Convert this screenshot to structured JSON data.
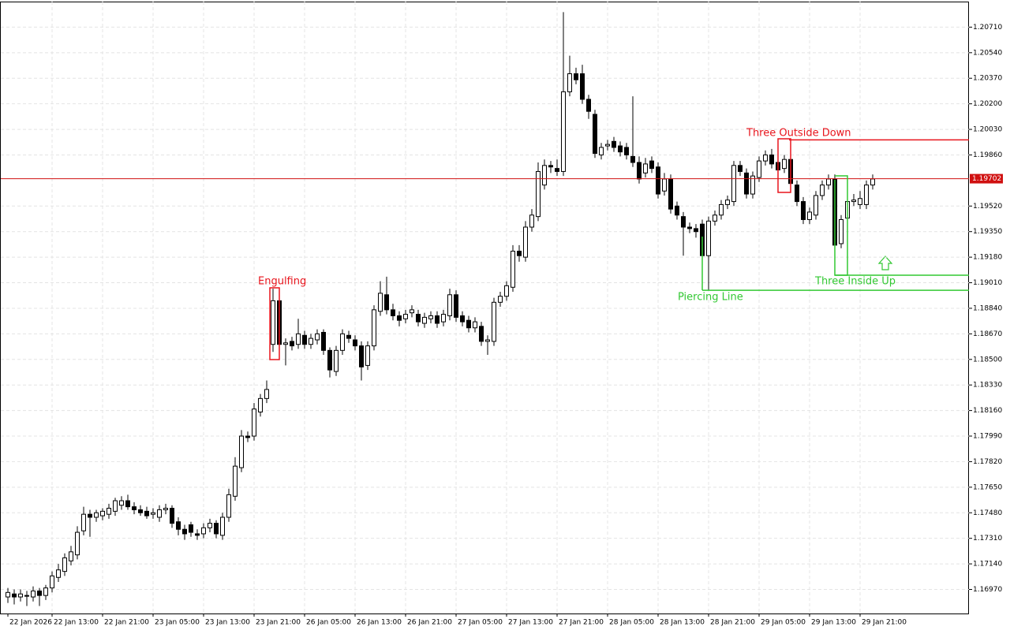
{
  "chart_data": {
    "type": "candlestick",
    "candles": [
      [
        1.1692,
        1.1698,
        1.1688,
        1.1695
      ],
      [
        1.1694,
        1.1697,
        1.1687,
        1.1692
      ],
      [
        1.1692,
        1.1697,
        1.1689,
        1.1694
      ],
      [
        1.1693,
        1.1696,
        1.1686,
        1.1693
      ],
      [
        1.1692,
        1.1699,
        1.1689,
        1.1696
      ],
      [
        1.1696,
        1.1698,
        1.1686,
        1.1693
      ],
      [
        1.1693,
        1.17,
        1.169,
        1.1698
      ],
      [
        1.1698,
        1.1709,
        1.1695,
        1.1706
      ],
      [
        1.1705,
        1.1714,
        1.1702,
        1.171
      ],
      [
        1.1709,
        1.1721,
        1.1706,
        1.1718
      ],
      [
        1.1716,
        1.1726,
        1.1713,
        1.1722
      ],
      [
        1.172,
        1.1739,
        1.1717,
        1.1735
      ],
      [
        1.1736,
        1.1752,
        1.1733,
        1.1747
      ],
      [
        1.1747,
        1.175,
        1.1732,
        1.1745
      ],
      [
        1.1745,
        1.175,
        1.1742,
        1.1748
      ],
      [
        1.1746,
        1.1751,
        1.1743,
        1.1749
      ],
      [
        1.1747,
        1.1754,
        1.1744,
        1.1751
      ],
      [
        1.1749,
        1.1758,
        1.1746,
        1.1756
      ],
      [
        1.1753,
        1.1759,
        1.175,
        1.1756
      ],
      [
        1.1756,
        1.176,
        1.175,
        1.1752
      ],
      [
        1.1752,
        1.1755,
        1.1747,
        1.175
      ],
      [
        1.175,
        1.1753,
        1.1746,
        1.1748
      ],
      [
        1.1749,
        1.1752,
        1.1744,
        1.1746
      ],
      [
        1.1747,
        1.1751,
        1.1744,
        1.1748
      ],
      [
        1.1745,
        1.1753,
        1.1742,
        1.175
      ],
      [
        1.175,
        1.1754,
        1.1747,
        1.1751
      ],
      [
        1.1751,
        1.1753,
        1.1738,
        1.1741
      ],
      [
        1.1742,
        1.1745,
        1.1733,
        1.1737
      ],
      [
        1.1737,
        1.174,
        1.173,
        1.1734
      ],
      [
        1.174,
        1.1742,
        1.1732,
        1.1735
      ],
      [
        1.1734,
        1.1737,
        1.173,
        1.1733
      ],
      [
        1.1734,
        1.1741,
        1.1731,
        1.1738
      ],
      [
        1.1738,
        1.1744,
        1.1735,
        1.1741
      ],
      [
        1.1741,
        1.1743,
        1.1731,
        1.1734
      ],
      [
        1.1733,
        1.1748,
        1.173,
        1.1745
      ],
      [
        1.1745,
        1.1764,
        1.1742,
        1.176
      ],
      [
        1.1759,
        1.1785,
        1.1756,
        1.1779
      ],
      [
        1.1778,
        1.1803,
        1.1775,
        1.1799
      ],
      [
        1.1799,
        1.1802,
        1.1795,
        1.1798
      ],
      [
        1.1799,
        1.1821,
        1.1796,
        1.1817
      ],
      [
        1.1815,
        1.1827,
        1.1812,
        1.1824
      ],
      [
        1.1824,
        1.1836,
        1.1821,
        1.183
      ],
      [
        1.186,
        1.1897,
        1.1855,
        1.1889
      ],
      [
        1.1889,
        1.1893,
        1.1851,
        1.186
      ],
      [
        1.186,
        1.1864,
        1.1846,
        1.1861
      ],
      [
        1.1862,
        1.1865,
        1.1856,
        1.1859
      ],
      [
        1.186,
        1.1877,
        1.1857,
        1.1867
      ],
      [
        1.1866,
        1.1869,
        1.1857,
        1.186
      ],
      [
        1.186,
        1.1867,
        1.1857,
        1.1864
      ],
      [
        1.1863,
        1.187,
        1.186,
        1.1867
      ],
      [
        1.1868,
        1.187,
        1.1853,
        1.1856
      ],
      [
        1.1856,
        1.1858,
        1.1838,
        1.1843
      ],
      [
        1.1842,
        1.1859,
        1.1839,
        1.1856
      ],
      [
        1.1856,
        1.187,
        1.1853,
        1.1867
      ],
      [
        1.1866,
        1.1869,
        1.1861,
        1.1864
      ],
      [
        1.1863,
        1.1866,
        1.1856,
        1.1859
      ],
      [
        1.1859,
        1.1862,
        1.1836,
        1.1845
      ],
      [
        1.1846,
        1.1862,
        1.1843,
        1.1859
      ],
      [
        1.1859,
        1.1886,
        1.1856,
        1.1883
      ],
      [
        1.1882,
        1.1902,
        1.1879,
        1.1894
      ],
      [
        1.1893,
        1.1905,
        1.188,
        1.1883
      ],
      [
        1.1883,
        1.1887,
        1.1876,
        1.1879
      ],
      [
        1.1879,
        1.1882,
        1.1872,
        1.1876
      ],
      [
        1.1877,
        1.1883,
        1.1874,
        1.188
      ],
      [
        1.1881,
        1.1886,
        1.1878,
        1.1883
      ],
      [
        1.188,
        1.1883,
        1.1872,
        1.1875
      ],
      [
        1.1874,
        1.1881,
        1.1871,
        1.1878
      ],
      [
        1.1877,
        1.1882,
        1.1874,
        1.1879
      ],
      [
        1.1879,
        1.1882,
        1.1871,
        1.1874
      ],
      [
        1.1875,
        1.1883,
        1.1872,
        1.188
      ],
      [
        1.1879,
        1.1897,
        1.1876,
        1.1893
      ],
      [
        1.1893,
        1.1896,
        1.1875,
        1.1878
      ],
      [
        1.1879,
        1.1882,
        1.1872,
        1.1875
      ],
      [
        1.1876,
        1.1879,
        1.1868,
        1.1871
      ],
      [
        1.1871,
        1.1878,
        1.1868,
        1.1875
      ],
      [
        1.1872,
        1.1875,
        1.1859,
        1.1862
      ],
      [
        1.1862,
        1.1866,
        1.1853,
        1.1863
      ],
      [
        1.1862,
        1.1891,
        1.1859,
        1.1888
      ],
      [
        1.1888,
        1.1895,
        1.1885,
        1.1892
      ],
      [
        1.1892,
        1.1902,
        1.1889,
        1.1899
      ],
      [
        1.1898,
        1.1926,
        1.1895,
        1.1922
      ],
      [
        1.1922,
        1.1926,
        1.1915,
        1.1919
      ],
      [
        1.1918,
        1.1942,
        1.1915,
        1.1938
      ],
      [
        1.1938,
        1.195,
        1.1935,
        1.1946
      ],
      [
        1.1945,
        1.1981,
        1.1942,
        1.1975
      ],
      [
        1.1966,
        1.1983,
        1.1963,
        1.1979
      ],
      [
        1.1979,
        1.1982,
        1.1974,
        1.1978
      ],
      [
        1.1977,
        1.1983,
        1.1972,
        1.1975
      ],
      [
        1.1975,
        1.2081,
        1.1972,
        1.2028
      ],
      [
        1.2028,
        1.2052,
        1.2025,
        1.204
      ],
      [
        1.204,
        1.2044,
        1.2033,
        1.2036
      ],
      [
        1.204,
        1.2046,
        1.202,
        1.2023
      ],
      [
        1.2023,
        1.2026,
        1.201,
        1.2015
      ],
      [
        1.2013,
        1.2016,
        1.1984,
        1.1987
      ],
      [
        1.1986,
        1.1994,
        1.1983,
        1.1991
      ],
      [
        1.1992,
        1.1996,
        1.1989,
        1.1993
      ],
      [
        1.1995,
        1.1998,
        1.1988,
        1.1991
      ],
      [
        1.1992,
        1.1995,
        1.1985,
        1.1988
      ],
      [
        1.1991,
        1.1994,
        1.1983,
        1.1986
      ],
      [
        1.1985,
        1.2025,
        1.1978,
        1.1981
      ],
      [
        1.1981,
        1.1985,
        1.1967,
        1.197
      ],
      [
        1.1974,
        1.1984,
        1.1971,
        1.198
      ],
      [
        1.1982,
        1.1985,
        1.1974,
        1.1977
      ],
      [
        1.1978,
        1.1981,
        1.1957,
        1.196
      ],
      [
        1.1962,
        1.1974,
        1.1959,
        1.197
      ],
      [
        1.197,
        1.1973,
        1.1947,
        1.195
      ],
      [
        1.1952,
        1.1955,
        1.1943,
        1.1946
      ],
      [
        1.1945,
        1.1948,
        1.1919,
        1.1938
      ],
      [
        1.1938,
        1.1941,
        1.1934,
        1.1937
      ],
      [
        1.1937,
        1.194,
        1.1931,
        1.1935
      ],
      [
        1.194,
        1.1943,
        1.1913,
        1.1919
      ],
      [
        1.1919,
        1.1945,
        1.1896,
        1.1942
      ],
      [
        1.1942,
        1.1949,
        1.1939,
        1.1946
      ],
      [
        1.1946,
        1.1956,
        1.1943,
        1.1953
      ],
      [
        1.1953,
        1.1959,
        1.195,
        1.1956
      ],
      [
        1.1955,
        1.1982,
        1.1952,
        1.1979
      ],
      [
        1.1979,
        1.1982,
        1.1972,
        1.1975
      ],
      [
        1.1974,
        1.1977,
        1.1957,
        1.196
      ],
      [
        1.196,
        1.1975,
        1.1957,
        1.1972
      ],
      [
        1.1971,
        1.1985,
        1.1968,
        1.1982
      ],
      [
        1.1982,
        1.1989,
        1.1979,
        1.1986
      ],
      [
        1.1986,
        1.199,
        1.1977,
        1.198
      ],
      [
        1.1981,
        1.1996,
        1.1963,
        1.1976
      ],
      [
        1.1977,
        1.1986,
        1.1974,
        1.1983
      ],
      [
        1.1983,
        1.1986,
        1.1964,
        1.1967
      ],
      [
        1.1966,
        1.1969,
        1.1952,
        1.1955
      ],
      [
        1.1955,
        1.1958,
        1.194,
        1.1943
      ],
      [
        1.1943,
        1.1951,
        1.194,
        1.1948
      ],
      [
        1.1946,
        1.1962,
        1.1943,
        1.1959
      ],
      [
        1.1959,
        1.1969,
        1.1956,
        1.1966
      ],
      [
        1.1966,
        1.1973,
        1.1963,
        1.197
      ],
      [
        1.197,
        1.1973,
        1.1915,
        1.1926
      ],
      [
        1.1927,
        1.1946,
        1.1924,
        1.1943
      ],
      [
        1.1944,
        1.1958,
        1.1941,
        1.1955
      ],
      [
        1.1955,
        1.196,
        1.1952,
        1.1956
      ],
      [
        1.1953,
        1.1962,
        1.195,
        1.1957
      ],
      [
        1.1953,
        1.1969,
        1.195,
        1.1966
      ],
      [
        1.1966,
        1.1973,
        1.1963,
        1.197
      ]
    ],
    "categories": [
      "22 Jan 2026",
      null,
      null,
      null,
      null,
      null,
      null,
      "22 Jan 13:00",
      null,
      null,
      null,
      null,
      null,
      null,
      null,
      "22 Jan 21:00",
      null,
      null,
      null,
      null,
      null,
      null,
      null,
      "23 Jan 05:00",
      null,
      null,
      null,
      null,
      null,
      null,
      null,
      "23 Jan 13:00",
      null,
      null,
      null,
      null,
      null,
      null,
      null,
      "23 Jan 21:00",
      null,
      null,
      null,
      null,
      null,
      null,
      null,
      "26 Jan 05:00",
      null,
      null,
      null,
      null,
      null,
      null,
      null,
      "26 Jan 13:00",
      null,
      null,
      null,
      null,
      null,
      null,
      null,
      "26 Jan 21:00",
      null,
      null,
      null,
      null,
      null,
      null,
      null,
      "27 Jan 05:00",
      null,
      null,
      null,
      null,
      null,
      null,
      null,
      "27 Jan 13:00",
      null,
      null,
      null,
      null,
      null,
      null,
      null,
      "27 Jan 21:00",
      null,
      null,
      null,
      null,
      null,
      null,
      null,
      "28 Jan 05:00",
      null,
      null,
      null,
      null,
      null,
      null,
      null,
      "28 Jan 13:00",
      null,
      null,
      null,
      null,
      null,
      null,
      null,
      "28 Jan 21:00",
      null,
      null,
      null,
      null,
      null,
      null,
      null,
      "29 Jan 05:00",
      null,
      null,
      null,
      null,
      null,
      null,
      null,
      "29 Jan 13:00",
      null,
      null,
      null,
      null,
      null,
      null,
      null,
      "29 Jan 21:00",
      null,
      null
    ],
    "ylim": [
      1.1681,
      1.2088
    ],
    "yticks": [
      {
        "value": 1.2071,
        "label": "1.20710"
      },
      {
        "value": 1.2054,
        "label": "1.20540"
      },
      {
        "value": 1.2037,
        "label": "1.20370"
      },
      {
        "value": 1.202,
        "label": "1.20200"
      },
      {
        "value": 1.2003,
        "label": "1.20030"
      },
      {
        "value": 1.1986,
        "label": "1.19860"
      },
      {
        "value": 1.1952,
        "label": "1.19520"
      },
      {
        "value": 1.1935,
        "label": "1.19350"
      },
      {
        "value": 1.1918,
        "label": "1.19180"
      },
      {
        "value": 1.1901,
        "label": "1.19010"
      },
      {
        "value": 1.1884,
        "label": "1.18840"
      },
      {
        "value": 1.1867,
        "label": "1.18670"
      },
      {
        "value": 1.185,
        "label": "1.18500"
      },
      {
        "value": 1.1833,
        "label": "1.18330"
      },
      {
        "value": 1.1816,
        "label": "1.18160"
      },
      {
        "value": 1.1799,
        "label": "1.17990"
      },
      {
        "value": 1.1782,
        "label": "1.17820"
      },
      {
        "value": 1.1765,
        "label": "1.17650"
      },
      {
        "value": 1.1748,
        "label": "1.17480"
      },
      {
        "value": 1.1731,
        "label": "1.17310"
      },
      {
        "value": 1.1714,
        "label": "1.17140"
      },
      {
        "value": 1.1697,
        "label": "1.16970"
      }
    ],
    "grid": true,
    "last_price": 1.19702,
    "annotations": [
      {
        "text": "Engulfing",
        "color": "#e8141c"
      },
      {
        "text": "Three Outside Down",
        "level": 1.1996,
        "color": "#e8141c"
      },
      {
        "text": "Piercing Line",
        "level": 1.1896,
        "color": "#32c832"
      },
      {
        "text": "Three Inside Up",
        "level": 1.1906,
        "color": "#32c832"
      }
    ]
  }
}
